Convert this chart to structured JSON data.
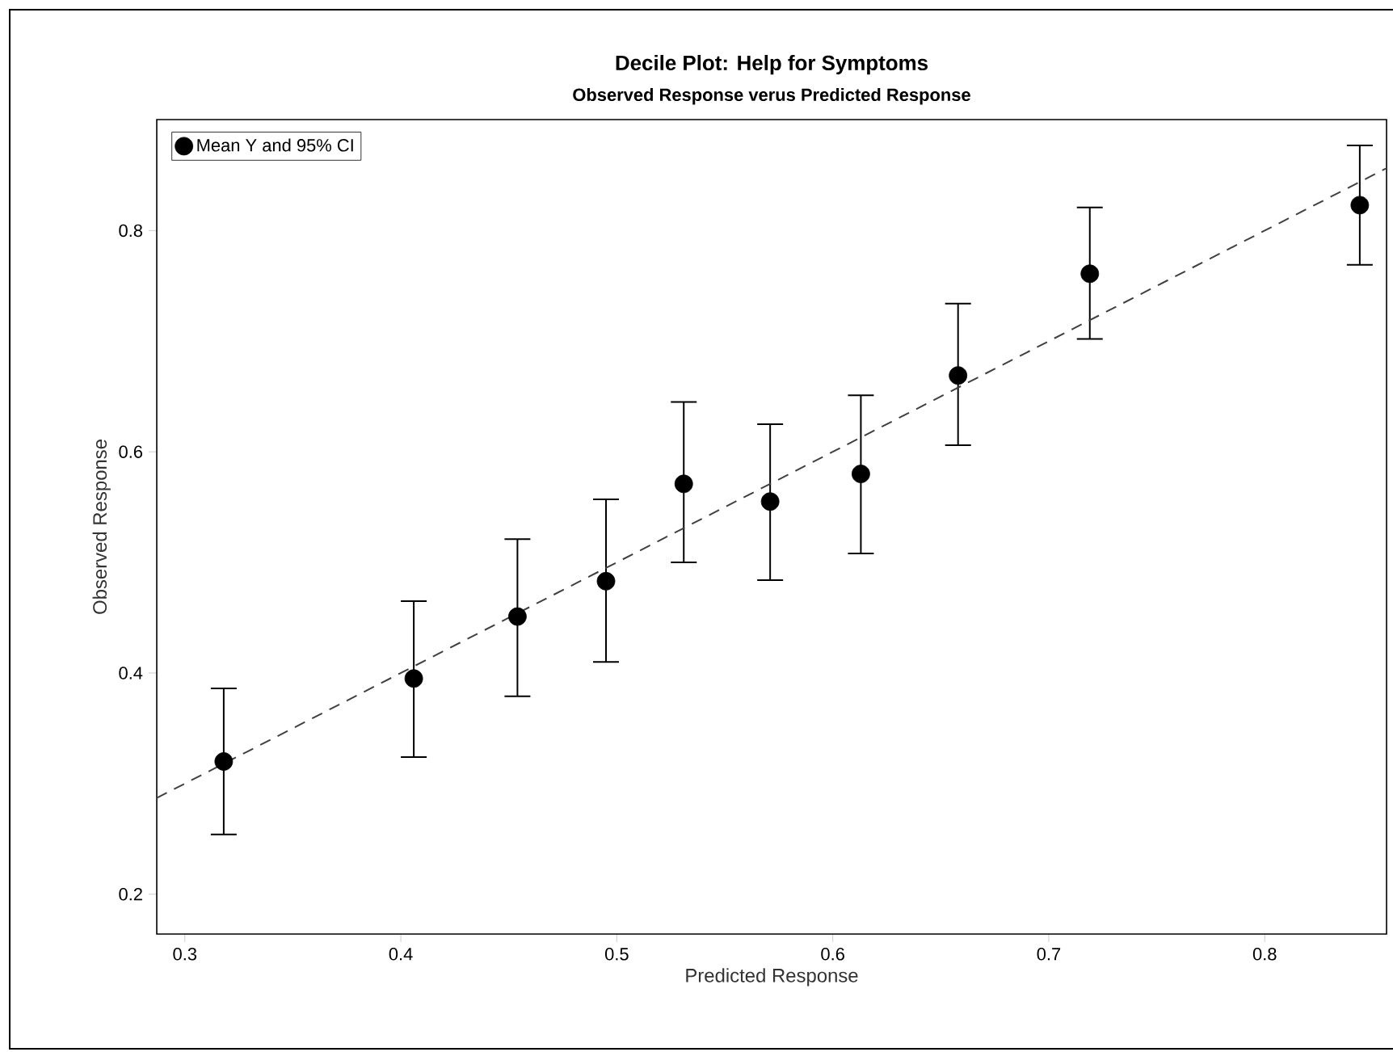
{
  "chart_data": {
    "type": "scatter",
    "title": "Decile Plot: Help for Symptoms",
    "subtitle": "Observed Response verus Predicted Response",
    "xlabel": "Predicted Response",
    "ylabel": "Observed Response",
    "xlim": [
      0.287,
      0.8564
    ],
    "ylim": [
      0.164,
      0.9004
    ],
    "xticks": [
      0.3,
      0.4,
      0.5,
      0.6,
      0.7,
      0.8
    ],
    "yticks": [
      0.2,
      0.4,
      0.6,
      0.8
    ],
    "grid": false,
    "legend": "top left",
    "series": [
      {
        "name": "Mean Y and 95% CI",
        "color": "#000000",
        "marker": "circle",
        "x": [
          0.318,
          0.406,
          0.454,
          0.495,
          0.531,
          0.571,
          0.613,
          0.658,
          0.719,
          0.844
        ],
        "values": [
          0.32,
          0.395,
          0.451,
          0.483,
          0.571,
          0.555,
          0.58,
          0.669,
          0.761,
          0.823
        ],
        "errors": [
          [
            0.254,
            0.386
          ],
          [
            0.324,
            0.465
          ],
          [
            0.379,
            0.521
          ],
          [
            0.41,
            0.557
          ],
          [
            0.5,
            0.645
          ],
          [
            0.484,
            0.625
          ],
          [
            0.508,
            0.651
          ],
          [
            0.606,
            0.734
          ],
          [
            0.702,
            0.821
          ],
          [
            0.769,
            0.877
          ]
        ]
      },
      {
        "type": "line",
        "color": "#404040",
        "line_style": "dashed",
        "marker": "none",
        "x": [
          0.287,
          0.856
        ],
        "values": [
          0.287,
          0.856
        ]
      }
    ]
  }
}
